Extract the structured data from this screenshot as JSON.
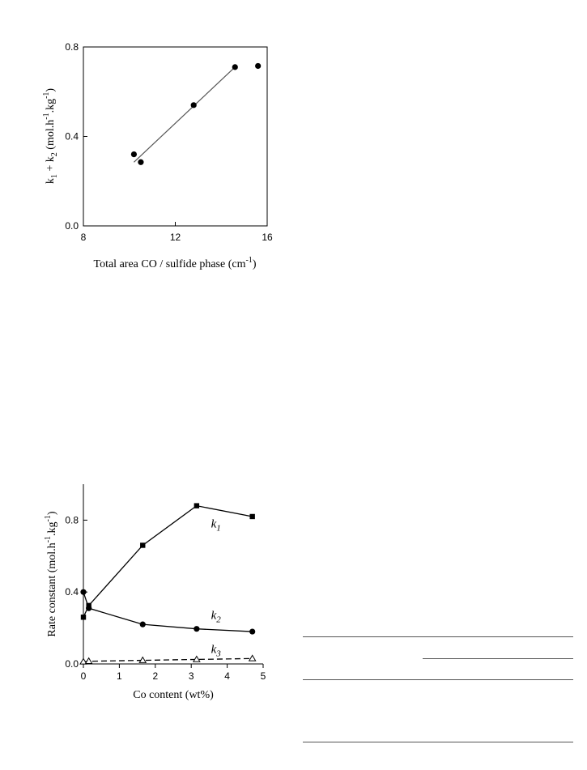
{
  "chart_data": [
    {
      "type": "scatter",
      "title": "",
      "xlabel": "Total area CO / sulfide phase (cm",
      "xlabel_sup": "-1",
      "xlabel_tail": ")",
      "ylabel_parts": [
        "k",
        "1",
        " + k",
        "2",
        " (mol.h",
        "-1",
        ".kg",
        "-1",
        ")"
      ],
      "xlim": [
        8,
        16
      ],
      "ylim": [
        0.0,
        0.8
      ],
      "xticks": [
        8,
        12,
        16
      ],
      "xtick_labels": [
        "8",
        "12",
        "16"
      ],
      "yticks": [
        0.0,
        0.4,
        0.8
      ],
      "ytick_labels": [
        "0.0",
        "0.4",
        "0.8"
      ],
      "points": [
        {
          "x": 10.2,
          "y": 0.32
        },
        {
          "x": 10.5,
          "y": 0.285
        },
        {
          "x": 12.8,
          "y": 0.54
        },
        {
          "x": 14.6,
          "y": 0.71
        },
        {
          "x": 15.6,
          "y": 0.715
        }
      ],
      "fit_line": [
        {
          "x": 10.2,
          "y": 0.285
        },
        {
          "x": 14.6,
          "y": 0.71
        }
      ]
    },
    {
      "type": "line",
      "title": "",
      "xlabel": "Co content (wt%)",
      "ylabel": "Rate constant (mol.h",
      "ylabel_sup1": "-1",
      "ylabel_mid": ".kg",
      "ylabel_sup2": "-1",
      "ylabel_tail": ")",
      "xlim": [
        0,
        5
      ],
      "ylim": [
        0.0,
        1.0
      ],
      "xticks": [
        0,
        1,
        2,
        3,
        4,
        5
      ],
      "xtick_labels": [
        "0",
        "1",
        "2",
        "3",
        "4",
        "5"
      ],
      "yticks": [
        0.0,
        0.4,
        0.8
      ],
      "ytick_labels": [
        "0.0",
        "0.4",
        "0.8"
      ],
      "series": [
        {
          "label_main": "k",
          "label_sub": "1",
          "marker": "square",
          "dash": "solid",
          "label_at": {
            "x": 3.55,
            "y": 0.76
          },
          "x": [
            0,
            0.15,
            1.65,
            3.15,
            4.7
          ],
          "y": [
            0.26,
            0.325,
            0.66,
            0.88,
            0.82
          ]
        },
        {
          "label_main": "k",
          "label_sub": "2",
          "marker": "circle",
          "dash": "solid",
          "label_at": {
            "x": 3.55,
            "y": 0.25
          },
          "x": [
            0,
            0.15,
            1.65,
            3.15,
            4.7
          ],
          "y": [
            0.4,
            0.31,
            0.22,
            0.195,
            0.18
          ]
        },
        {
          "label_main": "k",
          "label_sub": "3",
          "marker": "triangle-open",
          "dash": "dashed",
          "label_at": {
            "x": 3.55,
            "y": 0.06
          },
          "x": [
            0,
            0.15,
            1.65,
            3.15,
            4.7
          ],
          "y": [
            0.012,
            0.015,
            0.02,
            0.025,
            0.03
          ]
        }
      ]
    }
  ]
}
